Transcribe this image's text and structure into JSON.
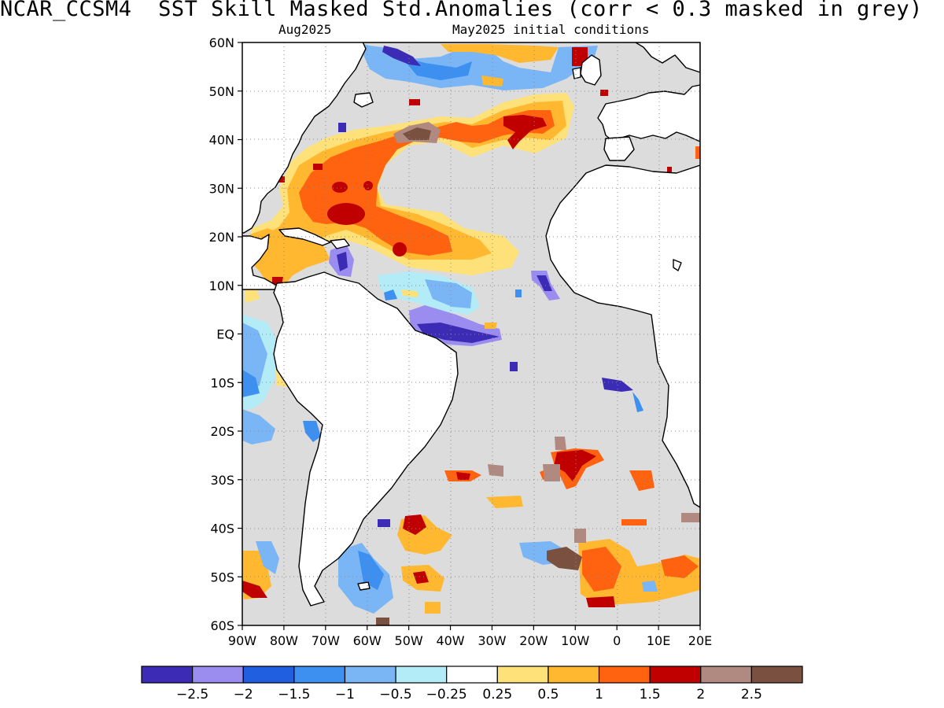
{
  "header": {
    "title": "NCAR_CCSM4  SST Skill Masked Std.Anomalies (corr < 0.3 masked in grey)",
    "target_month": "Aug2025",
    "initial_conditions": "May2025 initial conditions"
  },
  "map": {
    "lon_range": [
      -90,
      20
    ],
    "lat_range": [
      -60,
      60
    ],
    "lat_labels": [
      "60N",
      "50N",
      "40N",
      "30N",
      "20N",
      "10N",
      "EQ",
      "10S",
      "20S",
      "30S",
      "40S",
      "50S",
      "60S"
    ],
    "lon_labels": [
      "90W",
      "80W",
      "70W",
      "60W",
      "50W",
      "40W",
      "30W",
      "20W",
      "10W",
      "0",
      "10E",
      "20E"
    ],
    "mask_color": "#dcdcdc",
    "land_color": "#ffffff",
    "grid": "dotted"
  },
  "colorbar": {
    "colors": [
      "#3b2bb5",
      "#9b8cf0",
      "#1f5fe0",
      "#3d8ff0",
      "#7ab6f5",
      "#b3ecf7",
      "#ffffff",
      "#ffe17a",
      "#ffb830",
      "#ff6310",
      "#c00000",
      "#b08a80",
      "#7a5040"
    ],
    "labels": [
      "−2.5",
      "−2",
      "−1.5",
      "−1",
      "−0.5",
      "−0.25",
      "0.25",
      "0.5",
      "1",
      "1.5",
      "2",
      "2.5"
    ]
  }
}
